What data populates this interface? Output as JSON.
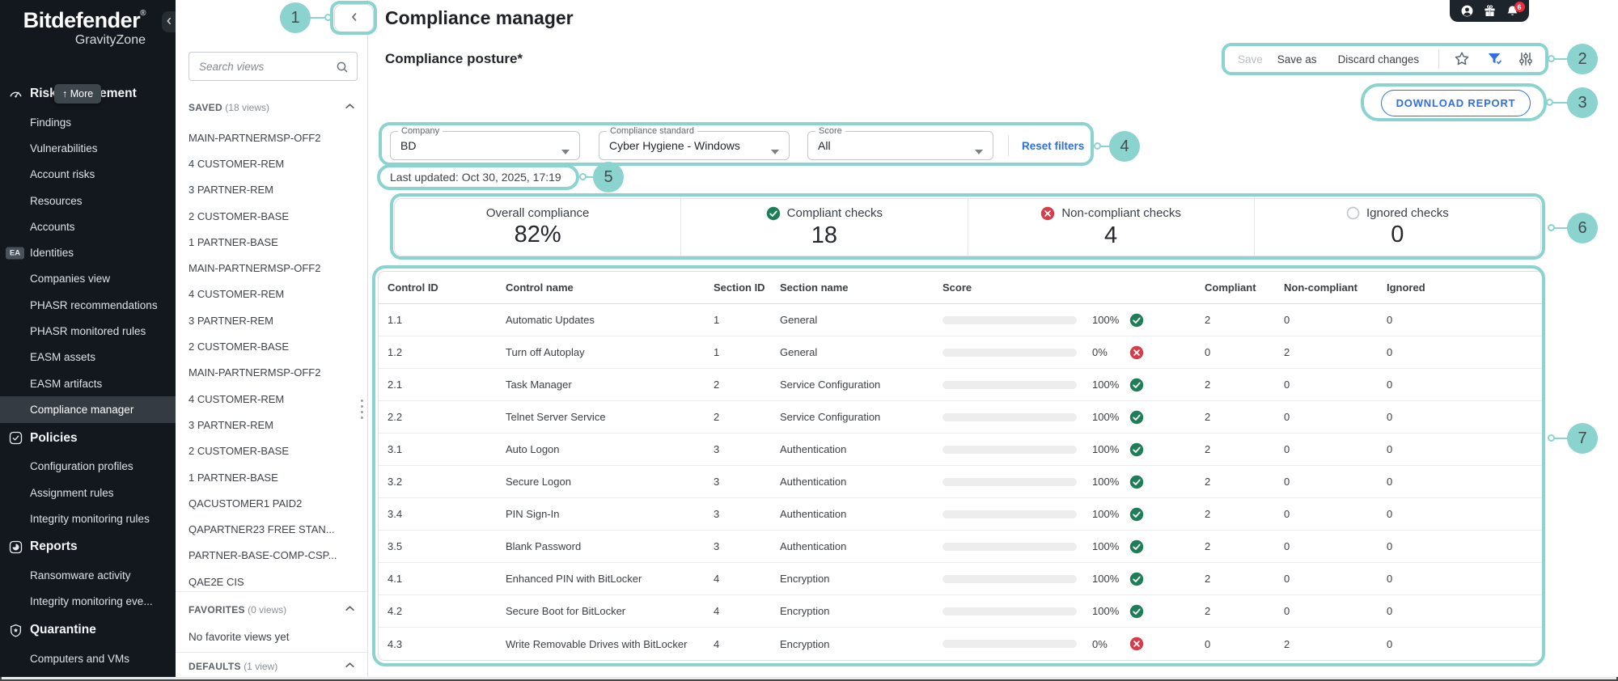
{
  "colors": {
    "accent_blue": "#2e6fe4",
    "green": "#1e7e58",
    "red": "#d63c49",
    "annotation_teal": "#8bd3ce",
    "sidebar_bg": "#12181e"
  },
  "annotations": [
    "1",
    "2",
    "3",
    "4",
    "5",
    "6",
    "7"
  ],
  "sidebar": {
    "brand_name": "Bitdefender",
    "brand_reg": "®",
    "brand_sub": "GravityZone",
    "items": [
      {
        "type": "section",
        "icon": "risk-management-icon",
        "label": "Risk Management",
        "overlay": "↑ More"
      },
      {
        "type": "item",
        "label": "Findings"
      },
      {
        "type": "item",
        "label": "Vulnerabilities"
      },
      {
        "type": "item",
        "label": "Account risks"
      },
      {
        "type": "item",
        "label": "Resources"
      },
      {
        "type": "item",
        "label": "Accounts"
      },
      {
        "type": "item",
        "badge": "EA",
        "label": "Identities"
      },
      {
        "type": "item",
        "label": "Companies view"
      },
      {
        "type": "item",
        "label": "PHASR recommendations"
      },
      {
        "type": "item",
        "label": "PHASR monitored rules"
      },
      {
        "type": "item",
        "label": "EASM assets"
      },
      {
        "type": "item",
        "label": "EASM artifacts"
      },
      {
        "type": "item",
        "label": "Compliance manager",
        "selected": true
      },
      {
        "type": "section",
        "icon": "policies-icon",
        "label": "Policies"
      },
      {
        "type": "item",
        "label": "Configuration profiles"
      },
      {
        "type": "item",
        "label": "Assignment rules"
      },
      {
        "type": "item",
        "label": "Integrity monitoring rules"
      },
      {
        "type": "section",
        "icon": "reports-icon",
        "label": "Reports"
      },
      {
        "type": "item",
        "label": "Ransomware activity"
      },
      {
        "type": "item",
        "label": "Integrity monitoring eve..."
      },
      {
        "type": "section",
        "icon": "quarantine-icon",
        "label": "Quarantine"
      },
      {
        "type": "item",
        "label": "Computers and VMs"
      }
    ]
  },
  "views_panel": {
    "search_placeholder": "Search views",
    "saved_title": "SAVED",
    "saved_count": "(18 views)",
    "saved_items": [
      "MAIN-PARTNERMSP-OFF2",
      "4 CUSTOMER-REM",
      "3 PARTNER-REM",
      "2 CUSTOMER-BASE",
      "1 PARTNER-BASE",
      "MAIN-PARTNERMSP-OFF2",
      "4 CUSTOMER-REM",
      "3 PARTNER-REM",
      "2 CUSTOMER-BASE",
      "MAIN-PARTNERMSP-OFF2",
      "4 CUSTOMER-REM",
      "3 PARTNER-REM",
      "2 CUSTOMER-BASE",
      "1 PARTNER-BASE",
      "QACUSTOMER1 PAID2",
      "QAPARTNER23 FREE STAN...",
      "PARTNER-BASE-COMP-CSP...",
      "QAE2E CIS"
    ],
    "favorites_title": "FAVORITES",
    "favorites_count": "(0 views)",
    "favorites_empty": "No favorite views yet",
    "defaults_title": "DEFAULTS",
    "defaults_count": "(1 view)"
  },
  "header": {
    "title": "Compliance manager",
    "subtitle": "Compliance posture*",
    "notification_count": "6"
  },
  "toolbar": {
    "save": "Save",
    "save_as": "Save as",
    "discard": "Discard changes"
  },
  "download_report": "DOWNLOAD REPORT",
  "filters": {
    "company_label": "Company",
    "company_value": "BD",
    "standard_label": "Compliance standard",
    "standard_value": "Cyber Hygiene - Windows",
    "score_label": "Score",
    "score_value": "All",
    "reset": "Reset filters",
    "last_updated": "Last updated: Oct 30, 2025, 17:19"
  },
  "summary": {
    "cards": [
      {
        "label": "Overall compliance",
        "value": "82%",
        "icon": null
      },
      {
        "label": "Compliant checks",
        "value": "18",
        "icon": "check"
      },
      {
        "label": "Non-compliant checks",
        "value": "4",
        "icon": "x"
      },
      {
        "label": "Ignored checks",
        "value": "0",
        "icon": "circle"
      }
    ]
  },
  "table": {
    "headers": [
      "Control ID",
      "Control name",
      "Section ID",
      "Section name",
      "Score",
      "Compliant",
      "Non-compliant",
      "Ignored"
    ],
    "rows": [
      {
        "control_id": "1.1",
        "control_name": "Automatic Updates",
        "section_id": "1",
        "section_name": "General",
        "score": 100,
        "score_label": "100%",
        "status": "check",
        "compliant": "2",
        "non_compliant": "0",
        "ignored": "0"
      },
      {
        "control_id": "1.2",
        "control_name": "Turn off Autoplay",
        "section_id": "1",
        "section_name": "General",
        "score": 0,
        "score_label": "0%",
        "status": "x",
        "compliant": "0",
        "non_compliant": "2",
        "ignored": "0"
      },
      {
        "control_id": "2.1",
        "control_name": "Task Manager",
        "section_id": "2",
        "section_name": "Service Configuration",
        "score": 100,
        "score_label": "100%",
        "status": "check",
        "compliant": "2",
        "non_compliant": "0",
        "ignored": "0"
      },
      {
        "control_id": "2.2",
        "control_name": "Telnet Server Service",
        "section_id": "2",
        "section_name": "Service Configuration",
        "score": 100,
        "score_label": "100%",
        "status": "check",
        "compliant": "2",
        "non_compliant": "0",
        "ignored": "0"
      },
      {
        "control_id": "3.1",
        "control_name": "Auto Logon",
        "section_id": "3",
        "section_name": "Authentication",
        "score": 100,
        "score_label": "100%",
        "status": "check",
        "compliant": "2",
        "non_compliant": "0",
        "ignored": "0"
      },
      {
        "control_id": "3.2",
        "control_name": "Secure Logon",
        "section_id": "3",
        "section_name": "Authentication",
        "score": 100,
        "score_label": "100%",
        "status": "check",
        "compliant": "2",
        "non_compliant": "0",
        "ignored": "0"
      },
      {
        "control_id": "3.4",
        "control_name": "PIN Sign-In",
        "section_id": "3",
        "section_name": "Authentication",
        "score": 100,
        "score_label": "100%",
        "status": "check",
        "compliant": "2",
        "non_compliant": "0",
        "ignored": "0"
      },
      {
        "control_id": "3.5",
        "control_name": "Blank Password",
        "section_id": "3",
        "section_name": "Authentication",
        "score": 100,
        "score_label": "100%",
        "status": "check",
        "compliant": "2",
        "non_compliant": "0",
        "ignored": "0"
      },
      {
        "control_id": "4.1",
        "control_name": "Enhanced PIN with BitLocker",
        "section_id": "4",
        "section_name": "Encryption",
        "score": 100,
        "score_label": "100%",
        "status": "check",
        "compliant": "2",
        "non_compliant": "0",
        "ignored": "0"
      },
      {
        "control_id": "4.2",
        "control_name": "Secure Boot for BitLocker",
        "section_id": "4",
        "section_name": "Encryption",
        "score": 100,
        "score_label": "100%",
        "status": "check",
        "compliant": "2",
        "non_compliant": "0",
        "ignored": "0"
      },
      {
        "control_id": "4.3",
        "control_name": "Write Removable Drives with BitLocker",
        "section_id": "4",
        "section_name": "Encryption",
        "score": 0,
        "score_label": "0%",
        "status": "x",
        "compliant": "0",
        "non_compliant": "2",
        "ignored": "0"
      }
    ]
  }
}
